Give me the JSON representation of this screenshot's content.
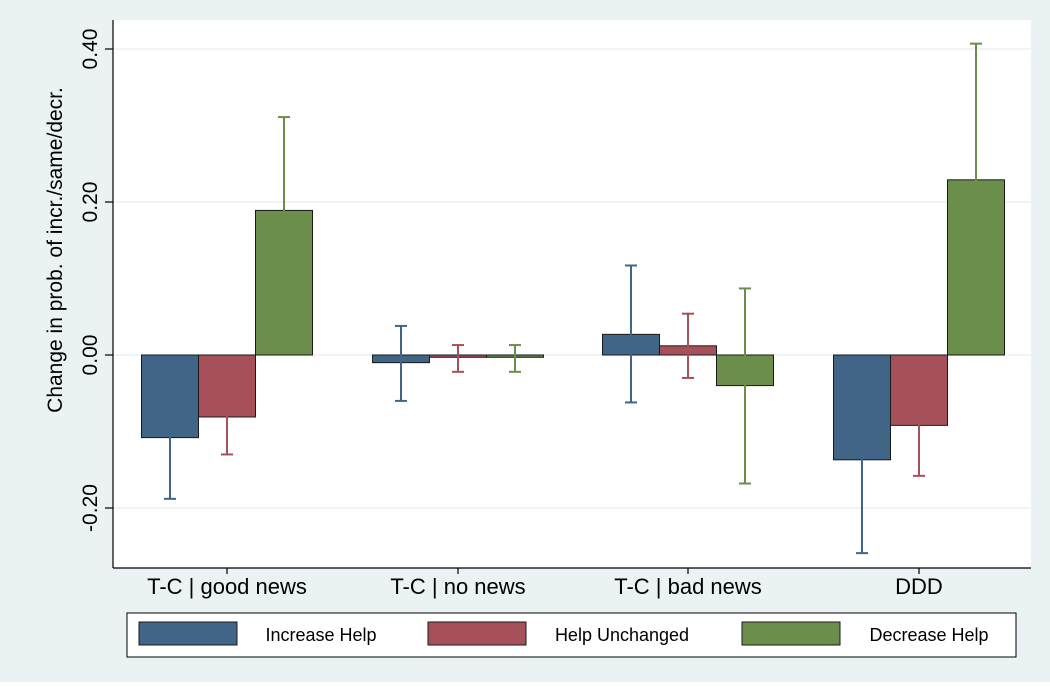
{
  "chart_data": {
    "type": "bar",
    "title": "",
    "xlabel": "",
    "ylabel": "Change in prob. of incr./same/decr.",
    "ylim": [
      -0.28,
      0.42
    ],
    "yticks": [
      -0.2,
      0.0,
      0.2,
      0.4
    ],
    "ytick_labels": [
      "-0.20",
      "0.00",
      "0.20",
      "0.40"
    ],
    "grid": true,
    "legend_position": "bottom",
    "categories": [
      "T-C | good news",
      "T-C | no news",
      "T-C | bad news",
      "DDD"
    ],
    "series": [
      {
        "name": "Increase Help",
        "color": "#416587",
        "values": [
          -0.108,
          -0.01,
          0.027,
          -0.137
        ],
        "ci_low": [
          -0.188,
          -0.06,
          -0.062,
          -0.259
        ],
        "ci_high": [
          -0.03,
          0.038,
          0.117,
          -0.016
        ]
      },
      {
        "name": "Help Unchanged",
        "color": "#A65159",
        "values": [
          -0.081,
          -0.003,
          0.012,
          -0.092
        ],
        "ci_low": [
          -0.13,
          -0.022,
          -0.03,
          -0.158
        ],
        "ci_high": [
          -0.032,
          0.013,
          0.054,
          -0.028
        ]
      },
      {
        "name": "Decrease Help",
        "color": "#6B8E4B",
        "values": [
          0.189,
          -0.003,
          -0.04,
          0.229
        ],
        "ci_low": [
          0.069,
          -0.022,
          -0.168,
          0.053
        ],
        "ci_high": [
          0.311,
          0.013,
          0.087,
          0.407
        ]
      }
    ],
    "colors": {
      "background": "#EAF2F3",
      "plot_background": "#FFFFFF",
      "grid": "#EAF2F3",
      "increase_help": "#416587",
      "help_unchanged": "#A65159",
      "decrease_help": "#6B8E4B"
    }
  }
}
